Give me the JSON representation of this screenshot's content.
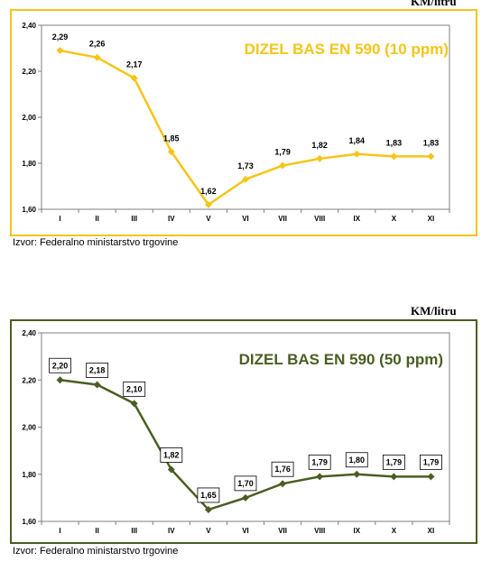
{
  "chart_data": [
    {
      "type": "line",
      "title": "DIZEL BAS EN 590 (10 ppm)",
      "unit": "KM/litru",
      "source": "Izvor: Federalno ministarstvo trgovine",
      "categories": [
        "I",
        "II",
        "III",
        "IV",
        "V",
        "VI",
        "VII",
        "VIII",
        "IX",
        "X",
        "XI"
      ],
      "values": [
        2.29,
        2.26,
        2.17,
        1.85,
        1.62,
        1.73,
        1.79,
        1.82,
        1.84,
        1.83,
        1.83
      ],
      "value_labels": [
        "2,29",
        "2,26",
        "2,17",
        "1,85",
        "1,62",
        "1,73",
        "1,79",
        "1,82",
        "1,84",
        "1,83",
        "1,83"
      ],
      "ylim": [
        1.6,
        2.4
      ],
      "yticks": [
        "1,60",
        "1,80",
        "2,00",
        "2,20",
        "2,40"
      ],
      "color": "#F5C518",
      "grid": false,
      "boxed_labels": false
    },
    {
      "type": "line",
      "title": "DIZEL BAS EN 590 (50 ppm)",
      "unit": "KM/litru",
      "source": "Izvor: Federalno ministarstvo trgovine",
      "categories": [
        "I",
        "II",
        "III",
        "IV",
        "V",
        "VI",
        "VII",
        "VIII",
        "IX",
        "X",
        "XI"
      ],
      "values": [
        2.2,
        2.18,
        2.1,
        1.82,
        1.65,
        1.7,
        1.76,
        1.79,
        1.8,
        1.79,
        1.79
      ],
      "value_labels": [
        "2,20",
        "2,18",
        "2,10",
        "1,82",
        "1,65",
        "1,70",
        "1,76",
        "1,79",
        "1,80",
        "1,79",
        "1,79"
      ],
      "ylim": [
        1.6,
        2.4
      ],
      "yticks": [
        "1,60",
        "1,80",
        "2,00",
        "2,20",
        "2,40"
      ],
      "color": "#4A5E23",
      "grid": false,
      "boxed_labels": true
    }
  ]
}
